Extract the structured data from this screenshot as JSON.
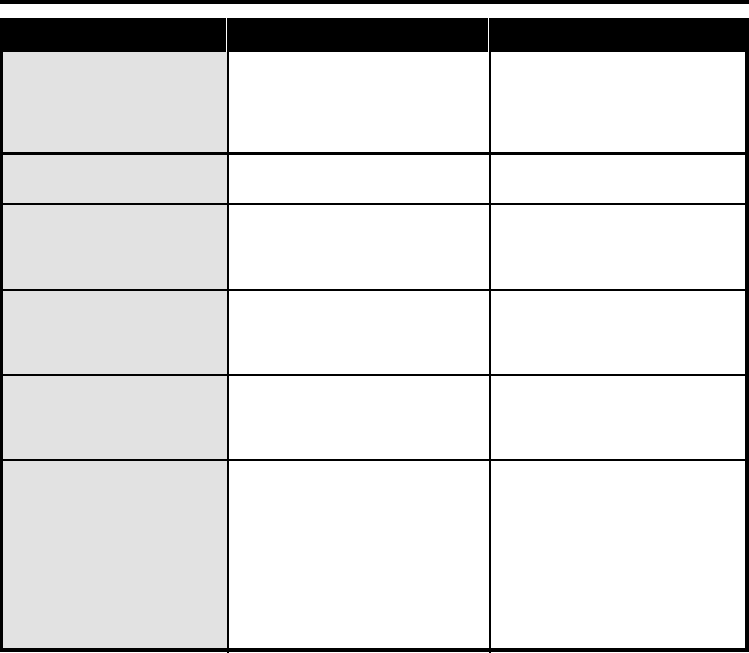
{
  "table": {
    "headers": [
      "",
      "",
      ""
    ],
    "rows": [
      [
        "",
        "",
        ""
      ],
      [
        "",
        "",
        ""
      ],
      [
        "",
        "",
        ""
      ],
      [
        "",
        "",
        ""
      ],
      [
        "",
        "",
        ""
      ],
      [
        "",
        "",
        ""
      ]
    ],
    "colors": {
      "header": "#000000",
      "first_column": "#e2e2e2",
      "cells": "#ffffff",
      "border": "#000000"
    }
  }
}
